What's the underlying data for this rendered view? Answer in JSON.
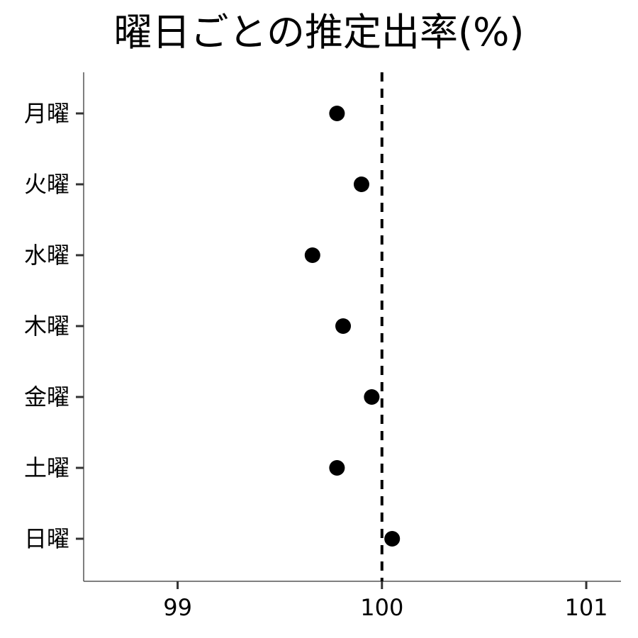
{
  "chart_data": {
    "type": "scatter",
    "title": "曜日ごとの推定出率(%)",
    "xlabel": "",
    "ylabel": "",
    "categories": [
      "月曜",
      "火曜",
      "水曜",
      "木曜",
      "金曜",
      "土曜",
      "日曜"
    ],
    "values": [
      99.78,
      99.9,
      99.66,
      99.81,
      99.95,
      99.78,
      100.05
    ],
    "xlim": [
      98.54,
      101.17
    ],
    "xticks": [
      99,
      100,
      101
    ],
    "reference_line": 100,
    "grid": false,
    "legend": "none",
    "colors": {
      "point": "#000000",
      "reference_line": "#000000",
      "axis": "#555555"
    }
  }
}
